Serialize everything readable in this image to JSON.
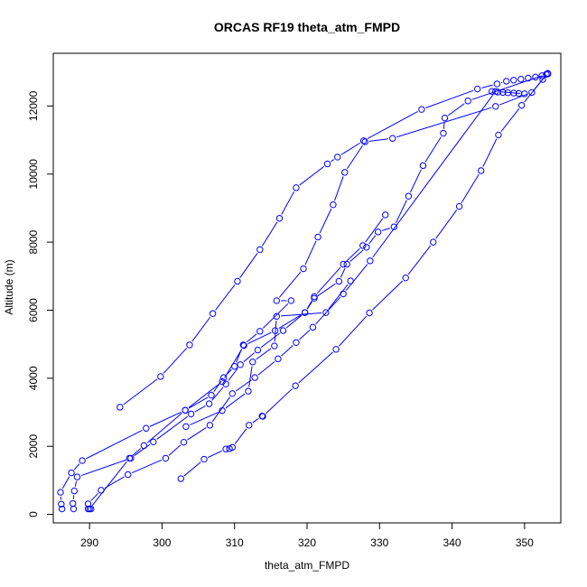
{
  "chart_data": {
    "type": "line",
    "title": "ORCAS RF19 theta_atm_FMPD",
    "xlabel": "theta_atm_FMPD",
    "ylabel": "Altitude (m)",
    "xlim": [
      285,
      355
    ],
    "ylim": [
      -250,
      13550
    ],
    "x_ticks": [
      290,
      300,
      310,
      320,
      330,
      340,
      350
    ],
    "y_ticks": [
      0,
      2000,
      4000,
      6000,
      8000,
      10000,
      12000
    ],
    "grid": false,
    "legend": "none",
    "marker": "open-circle",
    "color": "#0000ff",
    "series": [
      {
        "points": [
          [
            294.2,
            3150
          ],
          [
            299.8,
            4050
          ],
          [
            303.8,
            4980
          ],
          [
            307.0,
            5900
          ],
          [
            310.4,
            6850
          ],
          [
            313.5,
            7780
          ],
          [
            316.2,
            8700
          ],
          [
            318.5,
            9600
          ],
          [
            322.8,
            10300
          ],
          [
            324.2,
            10500
          ],
          [
            327.8,
            10980
          ],
          [
            335.8,
            11900
          ],
          [
            343.5,
            12500
          ],
          [
            346.2,
            12650
          ],
          [
            347.5,
            12730
          ],
          [
            348.5,
            12760
          ],
          [
            349.5,
            12790
          ],
          [
            350.5,
            12820
          ],
          [
            351.5,
            12850
          ],
          [
            352.4,
            12890
          ],
          [
            353.2,
            12940
          ]
        ]
      },
      {
        "points": [
          [
            353.2,
            12960
          ],
          [
            351.0,
            12400
          ],
          [
            346.0,
            11990
          ],
          [
            331.8,
            11050
          ],
          [
            328.0,
            10950
          ],
          [
            325.2,
            10050
          ],
          [
            323.6,
            9100
          ],
          [
            321.5,
            8150
          ],
          [
            319.5,
            7220
          ],
          [
            315.8,
            6280
          ],
          [
            317.8,
            6280
          ],
          [
            313.5,
            5380
          ],
          [
            311.2,
            4980
          ],
          [
            310.0,
            4350
          ],
          [
            308.5,
            4020
          ],
          [
            306.8,
            3500
          ],
          [
            303.2,
            3060
          ],
          [
            297.8,
            2530
          ],
          [
            289.0,
            1580
          ],
          [
            287.5,
            1220
          ],
          [
            286.0,
            650
          ],
          [
            286.1,
            300
          ],
          [
            286.2,
            160
          ]
        ]
      },
      {
        "points": [
          [
            353.0,
            12930
          ],
          [
            342.2,
            12150
          ],
          [
            339.0,
            11650
          ],
          [
            338.8,
            11200
          ],
          [
            336.0,
            10250
          ],
          [
            334.0,
            9350
          ],
          [
            332.0,
            8450
          ],
          [
            329.8,
            8300
          ],
          [
            328.2,
            7850
          ],
          [
            325.5,
            7350
          ],
          [
            324.4,
            6850
          ],
          [
            321.0,
            6350
          ],
          [
            319.7,
            5930
          ],
          [
            316.7,
            5400
          ],
          [
            313.2,
            4830
          ],
          [
            310.8,
            4400
          ],
          [
            308.8,
            3830
          ],
          [
            306.5,
            3250
          ],
          [
            304.0,
            2950
          ],
          [
            298.8,
            2130
          ],
          [
            295.7,
            1650
          ],
          [
            288.3,
            1100
          ],
          [
            287.9,
            690
          ],
          [
            287.7,
            320
          ],
          [
            287.8,
            160
          ]
        ]
      },
      {
        "points": [
          [
            330.8,
            8800
          ],
          [
            327.7,
            7900
          ],
          [
            325.0,
            7350
          ],
          [
            321.0,
            6400
          ],
          [
            319.7,
            5930
          ],
          [
            315.6,
            5400
          ],
          [
            311.3,
            4960
          ],
          [
            308.3,
            3900
          ],
          [
            303.2,
            3060
          ],
          [
            297.5,
            2020
          ],
          [
            295.5,
            1650
          ],
          [
            290.0,
            160
          ],
          [
            290.2,
            160
          ]
        ]
      },
      {
        "points": [
          [
            353.2,
            12950
          ],
          [
            352.5,
            12780
          ],
          [
            349.6,
            12020
          ],
          [
            346.4,
            11150
          ],
          [
            344.0,
            10100
          ],
          [
            341.0,
            9050
          ],
          [
            337.4,
            8000
          ],
          [
            333.6,
            6950
          ],
          [
            328.6,
            5920
          ],
          [
            324.0,
            4850
          ],
          [
            318.4,
            3780
          ],
          [
            313.9,
            2880
          ],
          [
            313.8,
            2890
          ],
          [
            312.0,
            2620
          ],
          [
            309.7,
            1970
          ],
          [
            309.3,
            1930
          ],
          [
            308.8,
            1920
          ],
          [
            305.8,
            1620
          ],
          [
            302.6,
            1050
          ]
        ]
      },
      {
        "points": [
          [
            345.5,
            12430
          ],
          [
            346.3,
            12410
          ],
          [
            347.0,
            12400
          ],
          [
            347.7,
            12390
          ],
          [
            348.5,
            12380
          ],
          [
            349.2,
            12370
          ],
          [
            350.0,
            12360
          ],
          [
            346.0,
            12430
          ],
          [
            328.7,
            7450
          ],
          [
            325.0,
            6480
          ],
          [
            320.8,
            5500
          ],
          [
            318.5,
            5050
          ],
          [
            316.0,
            4570
          ],
          [
            312.8,
            4020
          ],
          [
            309.7,
            3550
          ],
          [
            306.6,
            2620
          ],
          [
            303.0,
            2120
          ],
          [
            300.5,
            1650
          ],
          [
            295.3,
            1170
          ],
          [
            291.6,
            710
          ],
          [
            289.8,
            310
          ],
          [
            289.8,
            160
          ]
        ]
      },
      {
        "points": [
          [
            326.0,
            6860
          ],
          [
            322.6,
            5930
          ],
          [
            315.8,
            5820
          ],
          [
            315.5,
            4950
          ],
          [
            312.5,
            4480
          ],
          [
            311.9,
            3620
          ],
          [
            308.3,
            3050
          ],
          [
            303.3,
            2580
          ]
        ]
      }
    ]
  }
}
